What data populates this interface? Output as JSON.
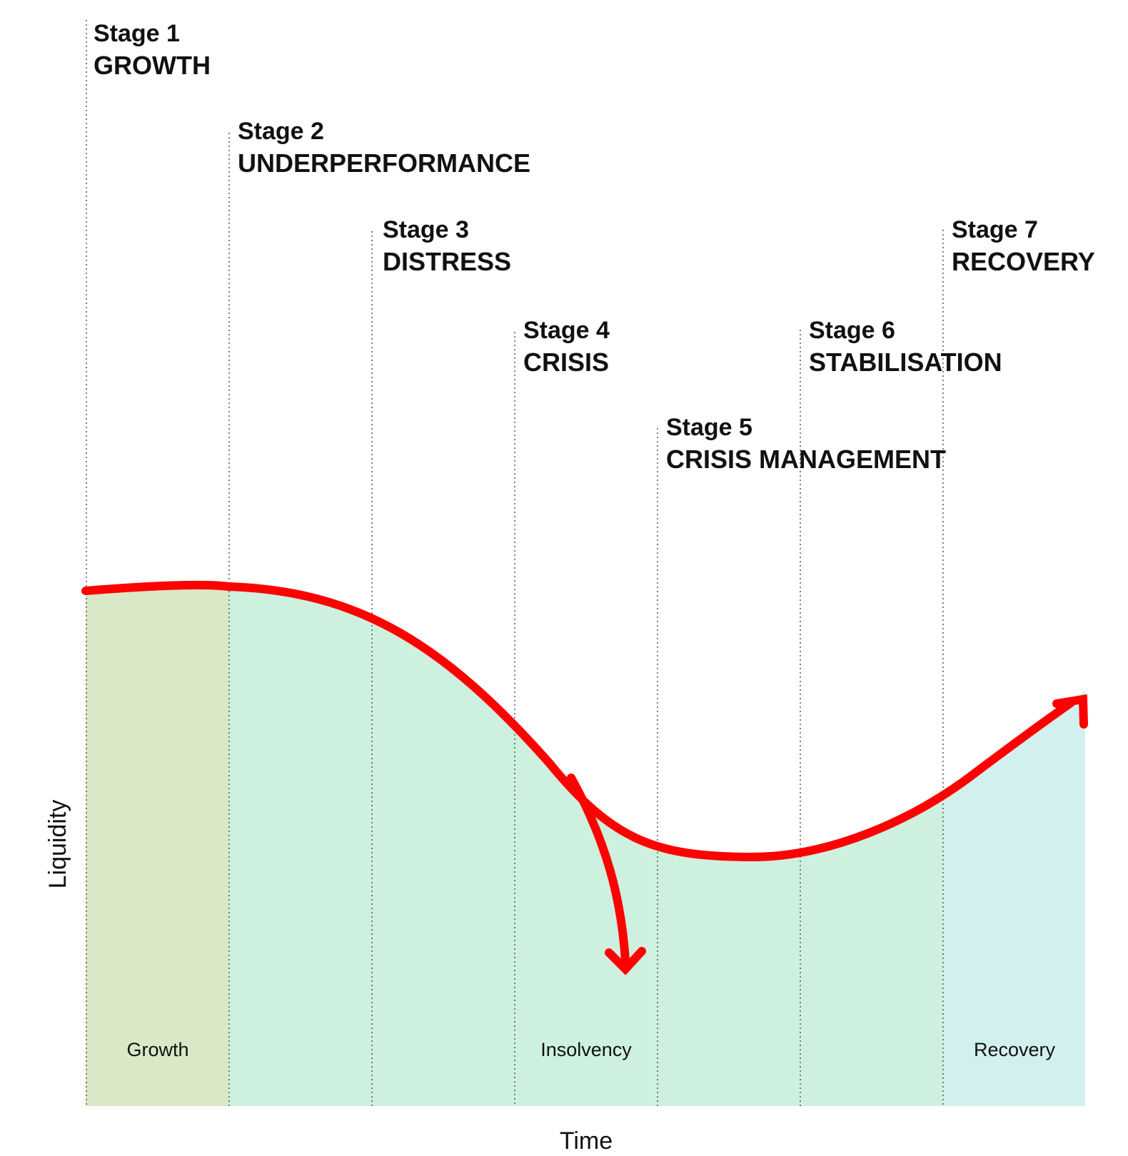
{
  "diagram": {
    "stages": [
      {
        "number": "Stage 1",
        "name": "GROWTH"
      },
      {
        "number": "Stage 2",
        "name": "UNDERPERFORMANCE"
      },
      {
        "number": "Stage 3",
        "name": "DISTRESS"
      },
      {
        "number": "Stage 4",
        "name": "CRISIS"
      },
      {
        "number": "Stage 5",
        "name": "CRISIS MANAGEMENT"
      },
      {
        "number": "Stage 6",
        "name": "STABILISATION"
      },
      {
        "number": "Stage 7",
        "name": "RECOVERY"
      }
    ],
    "zones": {
      "growth": "Growth",
      "insolvency": "Insolvency",
      "recovery": "Recovery"
    },
    "axes": {
      "x": "Time",
      "y": "Liquidity"
    },
    "colors": {
      "curve": "#ff0000",
      "growth_fill": "#d9e8c6",
      "main_fill": "#cdf0df",
      "recovery_fill": "#d2f0ee",
      "text": "#111111"
    }
  }
}
